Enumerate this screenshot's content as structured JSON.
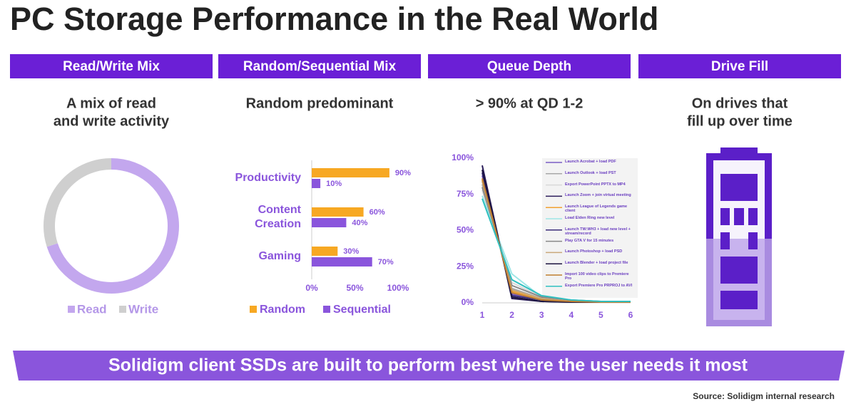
{
  "title": "PC Storage Performance in the Real World",
  "panels": [
    {
      "header": "Read/Write Mix",
      "caption": [
        "A mix of read",
        "and write activity"
      ]
    },
    {
      "header": "Random/Sequential Mix",
      "caption": [
        "Random predominant"
      ]
    },
    {
      "header": "Queue Depth",
      "caption": [
        "> 90% at QD 1-2"
      ]
    },
    {
      "header": "Drive Fill",
      "caption": [
        "On drives that",
        "fill up over time"
      ]
    }
  ],
  "chart_data": [
    {
      "type": "donut",
      "categories": [
        "Read",
        "Write"
      ],
      "values": [
        70,
        30
      ],
      "colors": [
        "#c3a7ee",
        "#cfcfcf"
      ]
    },
    {
      "type": "hbar",
      "categories": [
        "Productivity",
        "Content Creation",
        "Gaming"
      ],
      "series": [
        {
          "name": "Random",
          "color": "#f7a823",
          "values": [
            90,
            60,
            30
          ],
          "value_labels": [
            "90%",
            "60%",
            "30%"
          ]
        },
        {
          "name": "Sequential",
          "color": "#8a55dc",
          "values": [
            10,
            40,
            70
          ],
          "value_labels": [
            "10%",
            "40%",
            "70%"
          ]
        }
      ],
      "xlim": [
        0,
        100
      ],
      "xticks": [
        {
          "value": 0,
          "label": "0%"
        },
        {
          "value": 50,
          "label": "50%"
        },
        {
          "value": 100,
          "label": "100%"
        }
      ]
    },
    {
      "type": "line",
      "x": [
        1,
        2,
        3,
        4,
        5,
        6
      ],
      "series": [
        {
          "name": "Launch Acrobat + load PDF",
          "color": "#7b5cc4",
          "values": [
            88,
            6,
            2,
            1,
            0.5,
            0.5
          ]
        },
        {
          "name": "Launch Outlook + load PST",
          "color": "#a8a8a8",
          "values": [
            82,
            10,
            3,
            1,
            1,
            0.5
          ]
        },
        {
          "name": "Export PowerPoint PPTX to MP4",
          "color": "#d8d8d8",
          "values": [
            78,
            14,
            4,
            2,
            1,
            1
          ]
        },
        {
          "name": "Launch Zoom + join virtual meeting",
          "color": "#2b1d5a",
          "values": [
            95,
            3,
            1,
            0.5,
            0.5,
            0.5
          ]
        },
        {
          "name": "Launch League of Legends game client",
          "color": "#f0a030",
          "values": [
            85,
            8,
            3,
            1,
            1,
            0.5
          ]
        },
        {
          "name": "Load Elden Ring new level",
          "color": "#9ee6e6",
          "values": [
            74,
            20,
            4,
            1,
            1,
            0.5
          ]
        },
        {
          "name": "Launch TW:WH3 + load new level + stream/record",
          "color": "#3b2e7a",
          "values": [
            90,
            5,
            2,
            1,
            0.5,
            0.5
          ]
        },
        {
          "name": "Play GTA V for 15 minutes",
          "color": "#888888",
          "values": [
            80,
            12,
            4,
            2,
            1,
            1
          ]
        },
        {
          "name": "Launch Photoshop + load PSD",
          "color": "#c9a87a",
          "values": [
            84,
            9,
            3,
            1,
            1,
            0.5
          ]
        },
        {
          "name": "Launch Blender + load project file",
          "color": "#1c1440",
          "values": [
            92,
            4,
            1,
            0.5,
            0.5,
            0.5
          ]
        },
        {
          "name": "Import 100 video clips to Premiere Pro",
          "color": "#c08030",
          "values": [
            86,
            7,
            2,
            1,
            0.5,
            0.5
          ]
        },
        {
          "name": "Export Premiere Pro PRPROJ to AVI",
          "color": "#30c0c0",
          "values": [
            72,
            16,
            5,
            2,
            1,
            1
          ]
        }
      ],
      "ylim": [
        0,
        100
      ],
      "yticks": [
        {
          "value": 0,
          "label": "0%"
        },
        {
          "value": 25,
          "label": "25%"
        },
        {
          "value": 50,
          "label": "50%"
        },
        {
          "value": 75,
          "label": "75%"
        },
        {
          "value": 100,
          "label": "100%"
        }
      ],
      "xlim": [
        1,
        6
      ],
      "xticks": [
        1,
        2,
        3,
        4,
        5,
        6
      ]
    }
  ],
  "banner": "Solidigm client SSDs are built to perform best where the user needs it most",
  "source": "Source: Solidigm internal research"
}
